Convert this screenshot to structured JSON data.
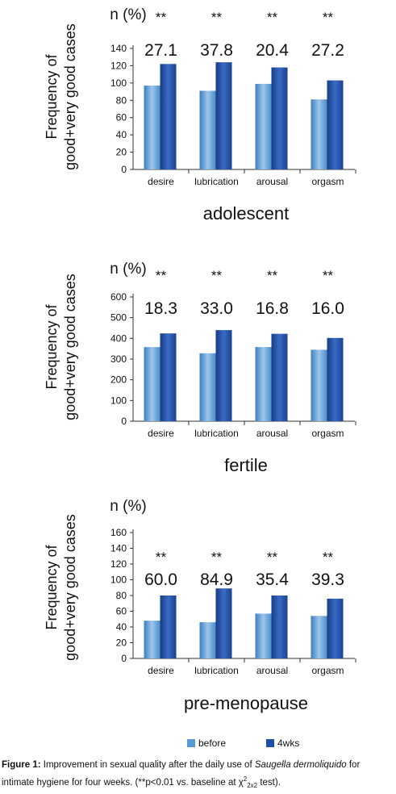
{
  "chart_data": [
    {
      "type": "bar",
      "title": "adolescent",
      "ylabel": [
        "Frequency of",
        "good+very good cases"
      ],
      "unit_label": "n (%)",
      "ylim": [
        0,
        140
      ],
      "yticks": [
        0,
        20,
        40,
        60,
        80,
        100,
        120,
        140
      ],
      "categories": [
        "desire",
        "lubrication",
        "arousal",
        "orgasm"
      ],
      "series": [
        {
          "name": "before",
          "values": [
            97,
            91,
            99,
            81
          ]
        },
        {
          "name": "4wks",
          "values": [
            122,
            124,
            118,
            103
          ]
        }
      ],
      "annotations": [
        "27.1",
        "37.8",
        "20.4",
        "27.2"
      ],
      "significance": [
        "**",
        "**",
        "**",
        "**"
      ]
    },
    {
      "type": "bar",
      "title": "fertile",
      "ylabel": [
        "Frequency of",
        "good+very good cases"
      ],
      "unit_label": "n (%)",
      "ylim": [
        0,
        600
      ],
      "yticks": [
        0,
        100,
        200,
        300,
        400,
        500,
        600
      ],
      "categories": [
        "desire",
        "lubrication",
        "arousal",
        "orgasm"
      ],
      "series": [
        {
          "name": "before",
          "values": [
            358,
            328,
            358,
            345
          ]
        },
        {
          "name": "4wks",
          "values": [
            424,
            440,
            422,
            402
          ]
        }
      ],
      "annotations": [
        "18.3",
        "33.0",
        "16.8",
        "16.0"
      ],
      "significance": [
        "**",
        "**",
        "**",
        "**"
      ]
    },
    {
      "type": "bar",
      "title": "pre-menopause",
      "ylabel": [
        "Frequency of",
        "good+very good cases"
      ],
      "unit_label": "n (%)",
      "ylim": [
        0,
        160
      ],
      "yticks": [
        0,
        20,
        40,
        60,
        80,
        100,
        120,
        140,
        160
      ],
      "categories": [
        "desire",
        "lubrication",
        "arousal",
        "orgasm"
      ],
      "series": [
        {
          "name": "before",
          "values": [
            48,
            46,
            57,
            54
          ]
        },
        {
          "name": "4wks",
          "values": [
            80,
            89,
            80,
            76
          ]
        }
      ],
      "annotations": [
        "60.0",
        "84.9",
        "35.4",
        "39.3"
      ],
      "significance": [
        "**",
        "**",
        "**",
        "**"
      ]
    }
  ],
  "legend": [
    {
      "label": "before",
      "color": "#5b9bd5"
    },
    {
      "label": "4wks",
      "color": "#1f4ea3"
    }
  ],
  "colors": {
    "before": "#5b9bd5",
    "after": "#1f4ea3"
  },
  "caption": {
    "label": "Figure 1:",
    "text_before_italic": " Improvement in sexual quality after the daily use of ",
    "italic": "Saugella dermoliquido",
    "text_after_italic": " for intimate hygiene for four weeks. (**p<0.01 vs. baseline at ",
    "chi": "χ",
    "sup": "2",
    "sub": "2x2",
    "text_end": " test)."
  }
}
